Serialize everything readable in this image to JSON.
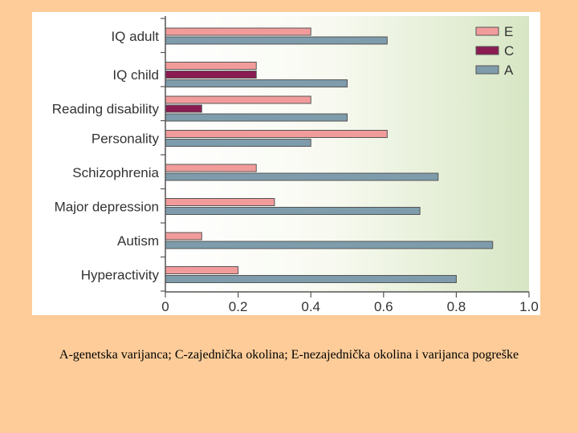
{
  "chart_data": {
    "type": "bar",
    "orientation": "horizontal",
    "categories": [
      "IQ adult",
      "IQ child",
      "Reading disability",
      "Personality",
      "Schizophrenia",
      "Major depression",
      "Autism",
      "Hyperactivity"
    ],
    "series": [
      {
        "name": "E",
        "color": "#f29b9b",
        "values": [
          0.4,
          0.25,
          0.4,
          0.61,
          0.25,
          0.3,
          0.1,
          0.2
        ]
      },
      {
        "name": "C",
        "color": "#8a1c52",
        "values": [
          null,
          0.25,
          0.1,
          null,
          null,
          null,
          null,
          null
        ]
      },
      {
        "name": "A",
        "color": "#7e9cab",
        "values": [
          0.61,
          0.5,
          0.5,
          0.4,
          0.75,
          0.7,
          0.9,
          0.8
        ]
      }
    ],
    "xlim": [
      0,
      1.0
    ],
    "ticks": [
      "0",
      "0.2",
      "0.4",
      "0.6",
      "0.8",
      "1.0"
    ],
    "legend_position": "top-right",
    "title": "",
    "xlabel": "",
    "ylabel": ""
  },
  "caption": "A-genetska varijanca; C-zajednička okolina; E-nezajednička okolina i varijanca pogreške"
}
